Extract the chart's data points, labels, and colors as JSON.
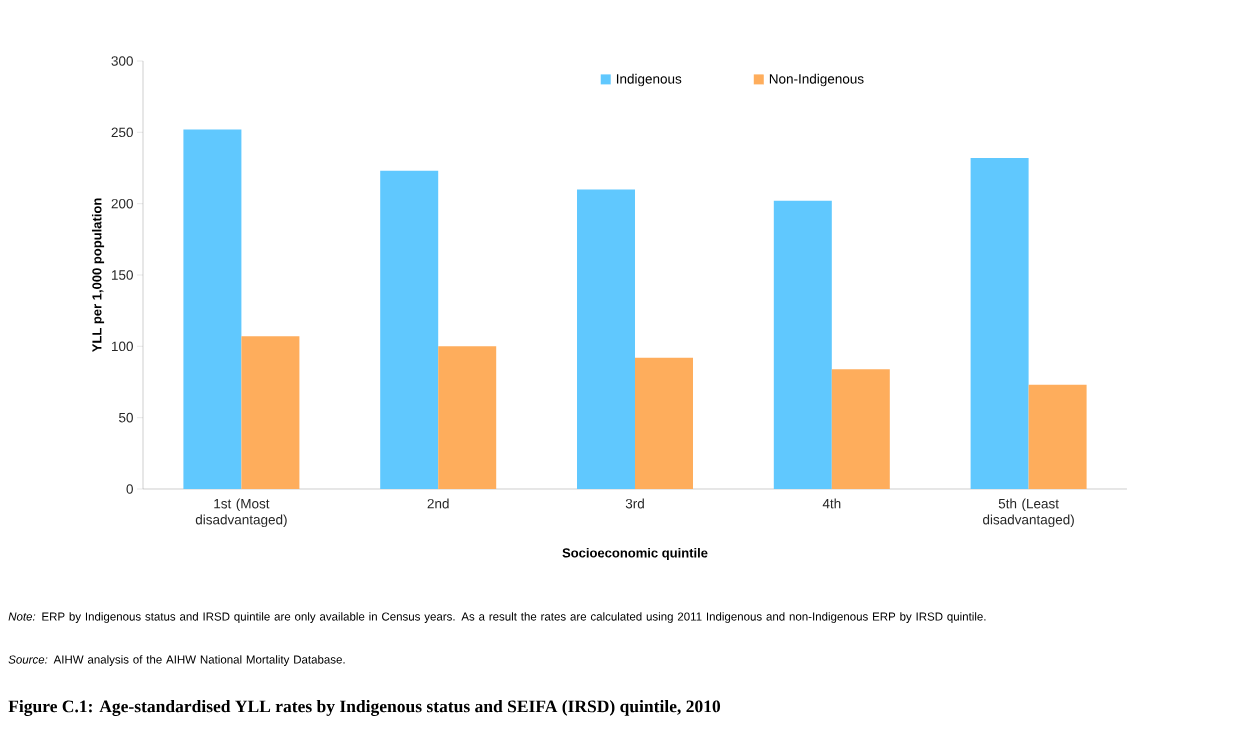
{
  "chart_data": {
    "type": "bar",
    "title": "Figure C.1: Age-standardised YLL rates by Indigenous status and SEIFA (IRSD) quintile, 2010",
    "xlabel": "Socioeconomic  quintile",
    "ylabel": "YLL per 1,000 population",
    "categories": [
      "1st (Most disadvantaged)",
      "2nd",
      "3rd",
      "4th",
      "5th (Least disadvantaged)"
    ],
    "series": [
      {
        "name": "Indigenous",
        "color": "#60c8fe",
        "values": [
          252,
          223,
          210,
          202,
          232
        ]
      },
      {
        "name": "Non-Indigenous",
        "color": "#fead5c",
        "values": [
          107,
          100,
          92,
          84,
          73
        ]
      }
    ],
    "ylim": [
      0,
      300
    ],
    "yticks": [
      0,
      50,
      100,
      150,
      200,
      250,
      300
    ],
    "legend": "top",
    "annotations": [
      "*Note:* ERP by Indigenous status and IRSD quintile are only available in Census years. As a result the rates are calculated using 2011 Indigenous and non-Indigenous ERP by IRSD quintile.",
      "*Source:* AIHW analysis of the AIHW National Mortality Database."
    ]
  }
}
